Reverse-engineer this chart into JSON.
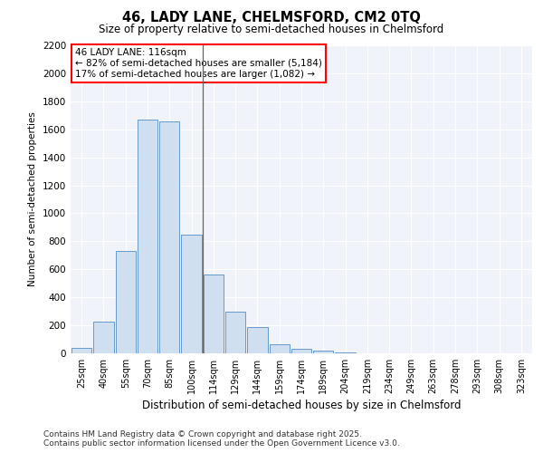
{
  "title": "46, LADY LANE, CHELMSFORD, CM2 0TQ",
  "subtitle": "Size of property relative to semi-detached houses in Chelmsford",
  "xlabel": "Distribution of semi-detached houses by size in Chelmsford",
  "ylabel": "Number of semi-detached properties",
  "categories": [
    "25sqm",
    "40sqm",
    "55sqm",
    "70sqm",
    "85sqm",
    "100sqm",
    "114sqm",
    "129sqm",
    "144sqm",
    "159sqm",
    "174sqm",
    "189sqm",
    "204sqm",
    "219sqm",
    "234sqm",
    "249sqm",
    "263sqm",
    "278sqm",
    "293sqm",
    "308sqm",
    "323sqm"
  ],
  "bar_heights": [
    40,
    225,
    730,
    1670,
    1655,
    850,
    565,
    300,
    185,
    65,
    30,
    20,
    5,
    0,
    0,
    0,
    0,
    0,
    0,
    0,
    0
  ],
  "bar_color": "#d0dff0",
  "bar_edge_color": "#6699cc",
  "vline_x_idx": 6,
  "annotation_title": "46 LADY LANE: 116sqm",
  "annotation_line1": "← 82% of semi-detached houses are smaller (5,184)",
  "annotation_line2": "17% of semi-detached houses are larger (1,082) →",
  "ylim": [
    0,
    2200
  ],
  "yticks": [
    0,
    200,
    400,
    600,
    800,
    1000,
    1200,
    1400,
    1600,
    1800,
    2000,
    2200
  ],
  "background_color": "#ffffff",
  "plot_bg_color": "#f0f4fa",
  "grid_color": "#ffffff",
  "footer_line1": "Contains HM Land Registry data © Crown copyright and database right 2025.",
  "footer_line2": "Contains public sector information licensed under the Open Government Licence v3.0."
}
